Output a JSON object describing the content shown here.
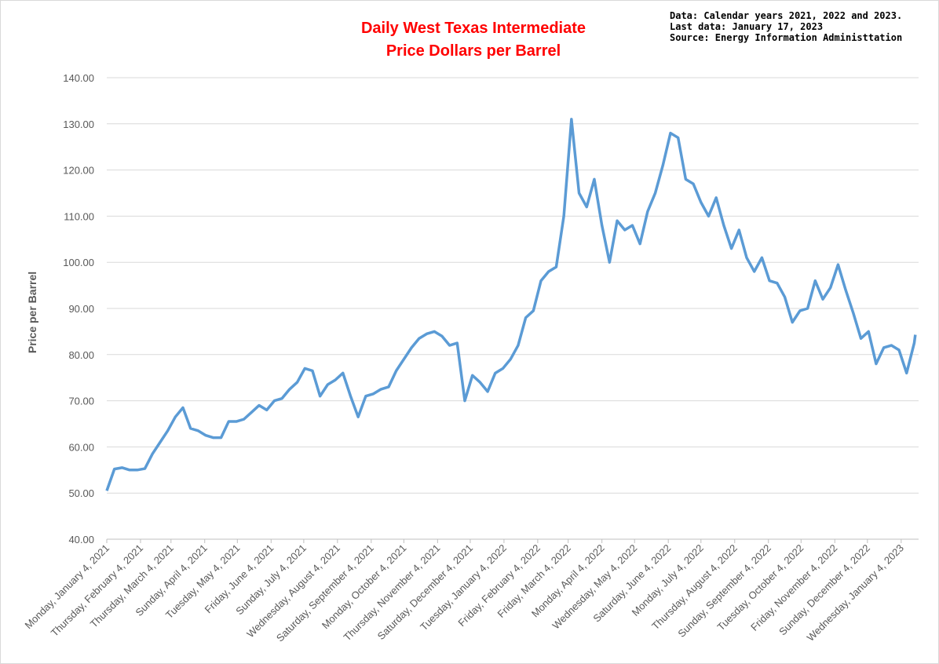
{
  "chart_data": {
    "type": "line",
    "title": [
      "Daily West Texas Intermediate",
      "Price Dollars per Barrel"
    ],
    "notes": [
      "Data: Calendar years 2021, 2022 and 2023.",
      "Last data: January 17, 2023",
      "Source: Energy Information Administtation"
    ],
    "y_label": "Price per Barrel",
    "x": [
      "2021-01-04",
      "2021-01-11",
      "2021-01-18",
      "2021-01-25",
      "2021-02-01",
      "2021-02-08",
      "2021-02-15",
      "2021-02-22",
      "2021-03-01",
      "2021-03-08",
      "2021-03-15",
      "2021-03-22",
      "2021-03-29",
      "2021-04-05",
      "2021-04-12",
      "2021-04-19",
      "2021-04-26",
      "2021-05-03",
      "2021-05-10",
      "2021-05-17",
      "2021-05-24",
      "2021-05-31",
      "2021-06-07",
      "2021-06-14",
      "2021-06-21",
      "2021-06-28",
      "2021-07-05",
      "2021-07-12",
      "2021-07-19",
      "2021-07-26",
      "2021-08-02",
      "2021-08-09",
      "2021-08-16",
      "2021-08-23",
      "2021-08-30",
      "2021-09-06",
      "2021-09-13",
      "2021-09-20",
      "2021-09-27",
      "2021-10-04",
      "2021-10-11",
      "2021-10-18",
      "2021-10-25",
      "2021-11-01",
      "2021-11-08",
      "2021-11-15",
      "2021-11-22",
      "2021-11-29",
      "2021-12-06",
      "2021-12-13",
      "2021-12-20",
      "2021-12-27",
      "2022-01-03",
      "2022-01-10",
      "2022-01-17",
      "2022-01-24",
      "2022-01-31",
      "2022-02-07",
      "2022-02-14",
      "2022-02-21",
      "2022-02-28",
      "2022-03-07",
      "2022-03-14",
      "2022-03-21",
      "2022-03-28",
      "2022-04-04",
      "2022-04-11",
      "2022-04-18",
      "2022-04-25",
      "2022-05-02",
      "2022-05-09",
      "2022-05-16",
      "2022-05-23",
      "2022-05-30",
      "2022-06-06",
      "2022-06-13",
      "2022-06-20",
      "2022-06-27",
      "2022-07-04",
      "2022-07-11",
      "2022-07-18",
      "2022-07-25",
      "2022-08-01",
      "2022-08-08",
      "2022-08-15",
      "2022-08-22",
      "2022-08-29",
      "2022-09-05",
      "2022-09-12",
      "2022-09-19",
      "2022-09-26",
      "2022-10-03",
      "2022-10-10",
      "2022-10-17",
      "2022-10-24",
      "2022-10-31",
      "2022-11-07",
      "2022-11-14",
      "2022-11-21",
      "2022-11-28",
      "2022-12-05",
      "2022-12-12",
      "2022-12-19",
      "2022-12-26",
      "2023-01-02",
      "2023-01-09",
      "2023-01-16",
      "2023-01-17"
    ],
    "series": [
      {
        "name": "WTI",
        "color": "#5b9bd5",
        "values": [
          50.5,
          55.2,
          55.5,
          55,
          55,
          55.3,
          58.5,
          61,
          63.5,
          66.5,
          68.5,
          64,
          63.5,
          62.5,
          62,
          62,
          65.5,
          65.5,
          66,
          67.5,
          69,
          68,
          70,
          70.5,
          72.5,
          74,
          77,
          76.5,
          71,
          73.5,
          74.5,
          76,
          71,
          66.5,
          71,
          71.5,
          72.5,
          73,
          76.5,
          79,
          81.5,
          83.5,
          84.5,
          85,
          84,
          82,
          82.5,
          70,
          75.5,
          74,
          72,
          76,
          77,
          79,
          82,
          88,
          89.5,
          96,
          98,
          99,
          110,
          131,
          115,
          112,
          118,
          108,
          100,
          109,
          107,
          108,
          104,
          111,
          115,
          121,
          128,
          127,
          118,
          117,
          113,
          110,
          114,
          108,
          103,
          107,
          101,
          98,
          101,
          96,
          95.5,
          92.5,
          87,
          89.5,
          90,
          96,
          92,
          94.5,
          99.5,
          94,
          89,
          83.5,
          85,
          78,
          81.5,
          82,
          81,
          76,
          82.5,
          84.3
        ]
      }
    ],
    "xlim": [
      "2021-01-04",
      "2023-01-20"
    ],
    "xticks": [
      {
        "value": "2021-01-04",
        "label": "Monday, January 4, 2021"
      },
      {
        "value": "2021-02-04",
        "label": "Thursday, February 4, 2021"
      },
      {
        "value": "2021-03-04",
        "label": "Thursday, March 4, 2021"
      },
      {
        "value": "2021-04-04",
        "label": "Sunday, April 4, 2021"
      },
      {
        "value": "2021-05-04",
        "label": "Tuesday, May 4, 2021"
      },
      {
        "value": "2021-06-04",
        "label": "Friday, June 4, 2021"
      },
      {
        "value": "2021-07-04",
        "label": "Sunday, July 4, 2021"
      },
      {
        "value": "2021-08-04",
        "label": "Wednesday, August 4, 2021"
      },
      {
        "value": "2021-09-04",
        "label": "Saturday, September 4, 2021"
      },
      {
        "value": "2021-10-04",
        "label": "Monday, October 4, 2021"
      },
      {
        "value": "2021-11-04",
        "label": "Thursday, November 4, 2021"
      },
      {
        "value": "2021-12-04",
        "label": "Saturday, December 4, 2021"
      },
      {
        "value": "2022-01-04",
        "label": "Tuesday, January 4, 2022"
      },
      {
        "value": "2022-02-04",
        "label": "Friday, February 4, 2022"
      },
      {
        "value": "2022-03-04",
        "label": "Friday, March 4, 2022"
      },
      {
        "value": "2022-04-04",
        "label": "Monday, April 4, 2022"
      },
      {
        "value": "2022-05-04",
        "label": "Wednesday, May 4, 2022"
      },
      {
        "value": "2022-06-04",
        "label": "Saturday, June 4, 2022"
      },
      {
        "value": "2022-07-04",
        "label": "Monday, July 4, 2022"
      },
      {
        "value": "2022-08-04",
        "label": "Thursday, August 4, 2022"
      },
      {
        "value": "2022-09-04",
        "label": "Sunday, September 4, 2022"
      },
      {
        "value": "2022-10-04",
        "label": "Tuesday, October 4, 2022"
      },
      {
        "value": "2022-11-04",
        "label": "Friday, November 4, 2022"
      },
      {
        "value": "2022-12-04",
        "label": "Sunday, December 4, 2022"
      },
      {
        "value": "2023-01-04",
        "label": "Wednesday, January 4, 2023"
      }
    ],
    "ylim": [
      40,
      140
    ],
    "yticks": [
      {
        "value": 40,
        "label": "40.00"
      },
      {
        "value": 50,
        "label": "50.00"
      },
      {
        "value": 60,
        "label": "60.00"
      },
      {
        "value": 70,
        "label": "70.00"
      },
      {
        "value": 80,
        "label": "80.00"
      },
      {
        "value": 90,
        "label": "90.00"
      },
      {
        "value": 100,
        "label": "100.00"
      },
      {
        "value": 110,
        "label": "110.00"
      },
      {
        "value": 120,
        "label": "120.00"
      },
      {
        "value": 130,
        "label": "130.00"
      },
      {
        "value": 140,
        "label": "140.00"
      }
    ],
    "grid": true
  }
}
